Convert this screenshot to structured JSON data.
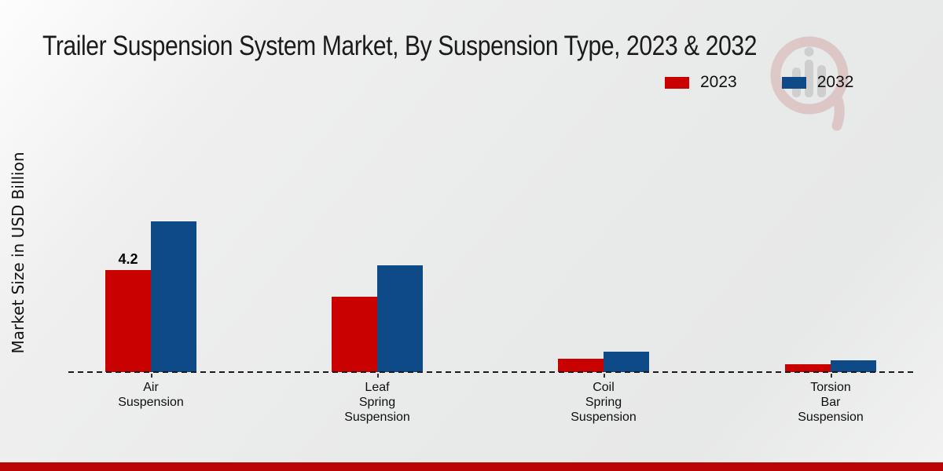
{
  "title": "Trailer Suspension System Market, By Suspension Type, 2023 & 2032",
  "y_axis_label": "Market Size in USD Billion",
  "legend": {
    "items": [
      {
        "label": "2023",
        "color": "#c90101"
      },
      {
        "label": "2032",
        "color": "#0d4a87"
      }
    ]
  },
  "colors": {
    "series_2023": "#c90101",
    "series_2032": "#0d4a87",
    "footer_bar": "#bb0505",
    "axis_line": "#1a1a1a"
  },
  "watermark": {
    "name": "market-research-future-logo"
  },
  "chart_data": {
    "type": "bar",
    "title": "Trailer Suspension System Market, By Suspension Type, 2023 & 2032",
    "xlabel": "",
    "ylabel": "Market Size in USD Billion",
    "categories": [
      "Air Suspension",
      "Leaf Spring Suspension",
      "Coil Spring Suspension",
      "Torsion Bar Suspension"
    ],
    "series": [
      {
        "name": "2023",
        "color": "#c90101",
        "values": [
          4.2,
          3.1,
          0.55,
          0.32
        ]
      },
      {
        "name": "2032",
        "color": "#0d4a87",
        "values": [
          6.2,
          4.4,
          0.85,
          0.5
        ]
      }
    ],
    "data_labels": [
      [
        "4.2",
        "",
        "",
        ""
      ],
      [
        "",
        "",
        "",
        ""
      ]
    ],
    "ylim": [
      0,
      6.6
    ],
    "grid": false,
    "baseline_style": "dashed",
    "legend_position": "top-right"
  }
}
